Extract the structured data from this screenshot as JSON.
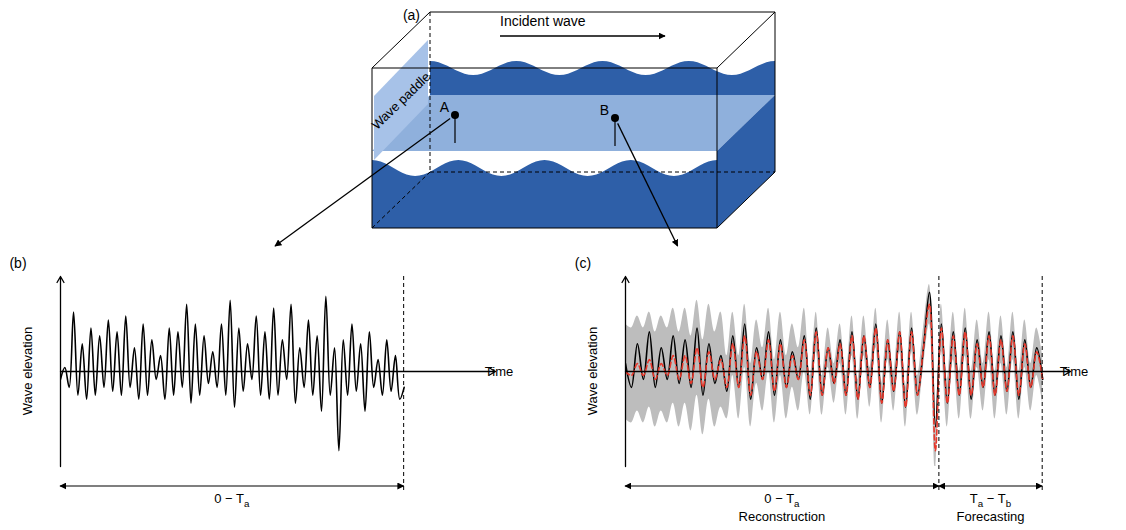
{
  "panel_a": {
    "label": "(a)",
    "incident_wave": "Incident wave",
    "wave_paddle": "Wave paddle",
    "probes": [
      {
        "label": "A",
        "to": "(b)"
      },
      {
        "label": "B",
        "to": "(c)"
      }
    ]
  },
  "chart_data": [
    {
      "type": "line",
      "label": "(b)",
      "x_label": "Time",
      "y_label": "Wave elevation",
      "xlim": [
        0,
        100
      ],
      "ylim": [
        -1.2,
        1.2
      ],
      "tick_labels": false,
      "x": [
        0,
        1,
        2,
        3,
        4,
        5,
        6,
        7,
        8,
        9,
        10,
        11,
        12,
        13,
        14,
        15,
        16,
        17,
        18,
        19,
        20,
        21,
        22,
        23,
        24,
        25,
        26,
        27,
        28,
        29,
        30,
        31,
        32,
        33,
        34,
        35,
        36,
        37,
        38,
        39,
        40,
        41,
        42,
        43,
        44,
        45,
        46,
        47,
        48,
        49,
        50,
        51,
        52,
        53,
        54,
        55,
        56,
        57,
        58,
        59,
        60,
        61,
        62,
        63,
        64,
        65,
        66,
        67,
        68,
        69,
        70,
        71,
        72,
        73,
        74,
        75,
        76,
        77,
        78,
        79
      ],
      "series": [
        {
          "color": "#000000",
          "values": [
            -0.1,
            0.05,
            -0.2,
            0.75,
            -0.3,
            0.35,
            -0.35,
            0.55,
            -0.3,
            0.45,
            -0.2,
            0.65,
            -0.25,
            0.5,
            -0.3,
            0.7,
            -0.2,
            0.3,
            -0.35,
            0.6,
            -0.3,
            0.4,
            -0.1,
            0.2,
            -0.35,
            0.55,
            -0.3,
            0.5,
            -0.2,
            0.85,
            -0.4,
            0.6,
            -0.3,
            0.45,
            -0.15,
            0.25,
            -0.2,
            0.6,
            -0.3,
            0.9,
            -0.45,
            0.55,
            -0.25,
            0.35,
            -0.1,
            0.7,
            -0.3,
            0.5,
            -0.35,
            0.8,
            -0.3,
            0.4,
            -0.1,
            0.85,
            -0.4,
            0.3,
            -0.2,
            0.65,
            -0.3,
            0.45,
            -0.5,
            0.95,
            -0.3,
            0.3,
            -1.0,
            0.4,
            -0.3,
            0.6,
            -0.25,
            0.35,
            -0.5,
            0.5,
            -0.2,
            0.15,
            -0.3,
            0.4,
            -0.25,
            0.2,
            -0.35,
            -0.2
          ]
        }
      ],
      "spans": [
        {
          "start": 0,
          "end": 79,
          "label": [
            {
              "text": "0 − T"
            },
            {
              "text": "a",
              "sub": true
            }
          ]
        }
      ]
    },
    {
      "type": "line",
      "label": "(c)",
      "x_label": "Time",
      "y_label": "Wave elevation",
      "xlim": [
        0,
        112
      ],
      "ylim": [
        -1.2,
        1.2
      ],
      "tick_labels": false,
      "x": [
        0,
        1.5,
        3,
        4.5,
        6,
        7.5,
        9,
        10.5,
        12,
        13.5,
        15,
        16.5,
        18,
        19.5,
        21,
        22.5,
        24,
        25.5,
        27,
        28.5,
        30,
        31.5,
        33,
        34.5,
        36,
        37.5,
        39,
        40.5,
        42,
        43.5,
        45,
        46.5,
        48,
        49.5,
        51,
        52.5,
        54,
        55.5,
        57,
        58.5,
        60,
        61.5,
        63,
        64.5,
        66,
        67.5,
        69,
        70.5,
        72,
        73.5,
        75,
        76.5,
        78,
        79.5,
        81,
        82.5,
        84,
        85.5,
        87,
        88.5,
        90,
        91.5,
        93,
        94.5,
        96,
        97.5,
        99,
        100.5,
        102,
        103.5,
        105
      ],
      "series": [
        {
          "color": "#000000",
          "values": [
            0.1,
            -0.2,
            0.35,
            -0.1,
            0.5,
            -0.2,
            0.3,
            -0.1,
            0.45,
            -0.15,
            0.4,
            -0.2,
            0.55,
            -0.3,
            0.35,
            -0.15,
            0.2,
            -0.25,
            0.45,
            -0.2,
            0.6,
            -0.35,
            0.3,
            -0.1,
            0.5,
            -0.3,
            0.4,
            -0.2,
            0.25,
            -0.1,
            0.45,
            -0.35,
            0.55,
            -0.3,
            0.3,
            -0.15,
            0.4,
            -0.3,
            0.5,
            -0.35,
            0.45,
            -0.2,
            0.6,
            -0.4,
            0.4,
            -0.25,
            0.5,
            -0.45,
            0.55,
            -0.3,
            0.3,
            1.0,
            -0.7,
            0.6,
            -0.4,
            0.5,
            -0.3,
            0.55,
            -0.35,
            0.4,
            -0.2,
            0.5,
            -0.3,
            0.45,
            -0.25,
            0.5,
            -0.35,
            0.4,
            -0.2,
            0.3,
            -0.1
          ]
        },
        {
          "color": "#e8382b",
          "line_style": "dashed",
          "values": [
            0.0,
            -0.05,
            0.1,
            -0.05,
            0.15,
            -0.1,
            0.1,
            -0.05,
            0.2,
            -0.1,
            0.2,
            -0.15,
            0.3,
            -0.2,
            0.25,
            -0.1,
            0.15,
            -0.2,
            0.35,
            -0.2,
            0.45,
            -0.3,
            0.25,
            -0.1,
            0.4,
            -0.25,
            0.35,
            -0.2,
            0.2,
            -0.1,
            0.4,
            -0.3,
            0.5,
            -0.3,
            0.3,
            -0.15,
            0.35,
            -0.3,
            0.45,
            -0.35,
            0.45,
            -0.2,
            0.55,
            -0.4,
            0.4,
            -0.25,
            0.5,
            -0.45,
            0.5,
            -0.3,
            0.3,
            0.85,
            -1.0,
            0.55,
            -0.4,
            0.45,
            -0.3,
            0.5,
            -0.3,
            0.35,
            -0.2,
            0.45,
            -0.3,
            0.4,
            -0.25,
            0.45,
            -0.3,
            0.35,
            -0.2,
            0.25,
            -0.1
          ],
          "band": {
            "color": "#bdbdbd",
            "halfwidth": [
              0.6,
              0.6,
              0.6,
              0.6,
              0.6,
              0.6,
              0.6,
              0.6,
              0.6,
              0.6,
              0.6,
              0.6,
              0.6,
              0.6,
              0.6,
              0.6,
              0.6,
              0.4,
              0.4,
              0.4,
              0.4,
              0.4,
              0.4,
              0.4,
              0.4,
              0.4,
              0.4,
              0.4,
              0.4,
              0.4,
              0.4,
              0.25,
              0.25,
              0.25,
              0.25,
              0.25,
              0.25,
              0.25,
              0.25,
              0.25,
              0.25,
              0.25,
              0.25,
              0.25,
              0.25,
              0.25,
              0.25,
              0.25,
              0.25,
              0.25,
              0.25,
              0.25,
              0.25,
              0.3,
              0.3,
              0.3,
              0.3,
              0.3,
              0.3,
              0.3,
              0.3,
              0.3,
              0.3,
              0.3,
              0.3,
              0.3,
              0.3,
              0.3,
              0.3,
              0.3,
              0.3
            ]
          }
        }
      ],
      "spans": [
        {
          "start": 0,
          "end": 79,
          "label": [
            {
              "text": "0 − T"
            },
            {
              "text": "a",
              "sub": true
            }
          ],
          "caption": "Reconstruction"
        },
        {
          "start": 79,
          "end": 105,
          "label": [
            {
              "text": "T"
            },
            {
              "text": "a",
              "sub": true
            },
            {
              "text": " − T"
            },
            {
              "text": "b",
              "sub": true
            }
          ],
          "caption": "Forecasting"
        }
      ]
    }
  ]
}
